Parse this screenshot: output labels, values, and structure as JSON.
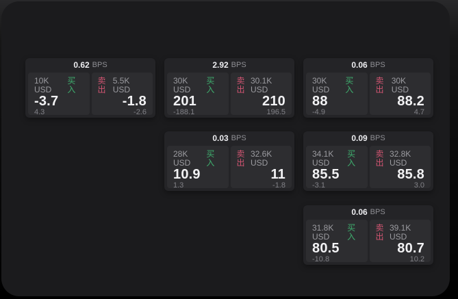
{
  "labels": {
    "buy": "买入",
    "sell": "卖出",
    "bps": "BPS"
  },
  "colors": {
    "buy_green": "#3fae6e",
    "sell_red": "#d25572",
    "panel_bg": "#1b1b1d",
    "card_bg": "#242427",
    "cell_bg": "#2d2d30"
  },
  "cards": [
    {
      "bps": "0.62",
      "buy": {
        "size": "10K USD",
        "value": "-3.7",
        "sub": "4.3"
      },
      "sell": {
        "size": "5.5K USD",
        "value": "-1.8",
        "sub": "-2.6"
      }
    },
    {
      "bps": "2.92",
      "buy": {
        "size": "30K USD",
        "value": "201",
        "sub": "-188.1"
      },
      "sell": {
        "size": "30.1K USD",
        "value": "210",
        "sub": "196.5"
      }
    },
    {
      "bps": "0.06",
      "buy": {
        "size": "30K USD",
        "value": "88",
        "sub": "-4.9"
      },
      "sell": {
        "size": "30K USD",
        "value": "88.2",
        "sub": "4.7"
      }
    },
    {
      "bps": "0.03",
      "buy": {
        "size": "28K USD",
        "value": "10.9",
        "sub": "1.3"
      },
      "sell": {
        "size": "32.6K USD",
        "value": "11",
        "sub": "-1.8"
      }
    },
    {
      "bps": "0.09",
      "buy": {
        "size": "34.1K USD",
        "value": "85.5",
        "sub": "-3.1"
      },
      "sell": {
        "size": "32.8K USD",
        "value": "85.8",
        "sub": "3.0"
      }
    },
    {
      "bps": "0.06",
      "buy": {
        "size": "31.8K USD",
        "value": "80.5",
        "sub": "-10.8"
      },
      "sell": {
        "size": "39.1K USD",
        "value": "80.7",
        "sub": "10.2"
      }
    }
  ]
}
